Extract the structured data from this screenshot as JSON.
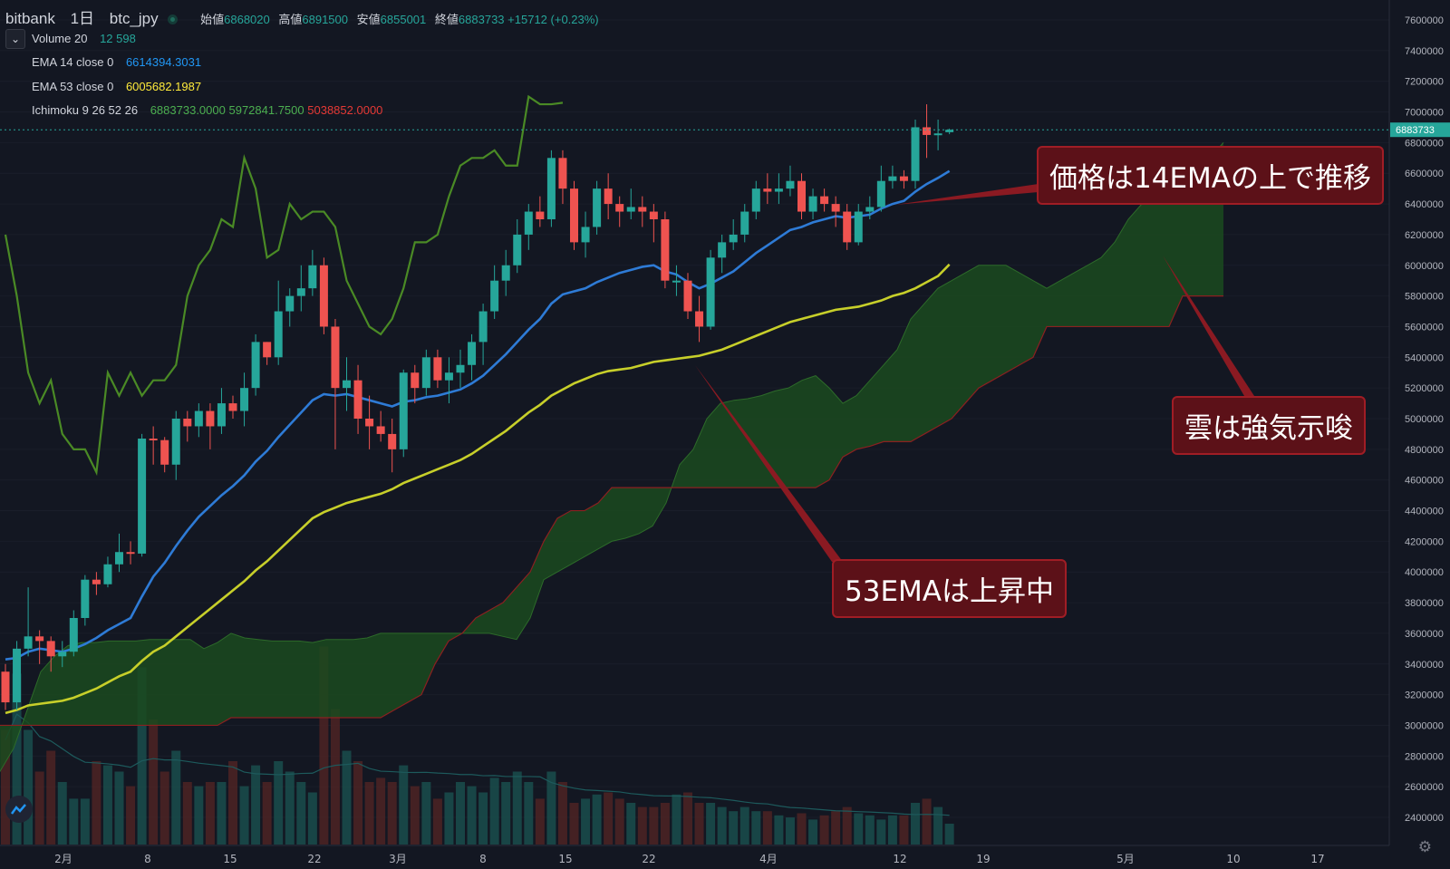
{
  "header": {
    "exchange": "bitbank",
    "interval": "1日",
    "symbol": "btc_jpy",
    "ohlc": {
      "open_label": "始値",
      "open": "6868020",
      "high_label": "高値",
      "high": "6891500",
      "low_label": "安値",
      "low": "6855001",
      "close_label": "終値",
      "close": "6883733",
      "change": "+15712 (+0.23%)"
    }
  },
  "indicators": [
    {
      "name": "Volume 20",
      "values": [
        "12",
        "598"
      ],
      "colors": [
        "#26a69a",
        "#26a69a"
      ]
    },
    {
      "name": "EMA 14 close 0",
      "values": [
        "6614394.3031"
      ],
      "colors": [
        "#2196f3"
      ]
    },
    {
      "name": "EMA 53 close 0",
      "values": [
        "6005682.1987"
      ],
      "colors": [
        "#ffeb3b"
      ]
    },
    {
      "name": "Ichimoku 9 26 52 26",
      "values": [
        "6883733.0000",
        "5972841.7500",
        "5038852.0000"
      ],
      "colors": [
        "#4caf50",
        "#4caf50",
        "#e53935"
      ]
    }
  ],
  "annotations": [
    "価格は14EMAの上で推移",
    "雲は強気示唆",
    "53EMAは上昇中"
  ],
  "colors": {
    "up": "#26a69a",
    "down": "#ef5350",
    "ema14": "#2e7bd6",
    "ema53": "#c7cf2a",
    "lagging": "#4a8a25",
    "cloud": "#1b4a1f",
    "cloud_edge": "#8b2020",
    "callout": "#5c1118"
  },
  "chart_data": {
    "type": "candlestick",
    "yaxis_ticks": [
      "7600000",
      "7400000",
      "7200000",
      "7000000",
      "6800000",
      "6600000",
      "6400000",
      "6200000",
      "6000000",
      "5800000",
      "5600000",
      "5400000",
      "5200000",
      "5000000",
      "4800000",
      "4600000",
      "4400000",
      "4200000",
      "4000000",
      "3800000",
      "3600000",
      "3400000",
      "3200000",
      "3000000",
      "2800000",
      "2600000",
      "2400000"
    ],
    "ylim": [
      2300000,
      7700000
    ],
    "price_label": "6883733",
    "xaxis_labels": [
      "2月",
      "8",
      "15",
      "22",
      "3月",
      "8",
      "15",
      "22",
      "4月",
      "12",
      "19",
      "5月",
      "10",
      "17"
    ],
    "candles": [
      [
        3350000,
        3150000,
        3400000,
        3100000
      ],
      [
        3150000,
        3500000,
        3550000,
        3100000
      ],
      [
        3500000,
        3580000,
        3900000,
        3450000
      ],
      [
        3580000,
        3550000,
        3620000,
        3400000
      ],
      [
        3550000,
        3450000,
        3580000,
        3350000
      ],
      [
        3450000,
        3480000,
        3550000,
        3380000
      ],
      [
        3480000,
        3700000,
        3750000,
        3450000
      ],
      [
        3700000,
        3950000,
        3980000,
        3650000
      ],
      [
        3950000,
        3920000,
        4000000,
        3850000
      ],
      [
        3920000,
        4050000,
        4100000,
        3900000
      ],
      [
        4050000,
        4130000,
        4250000,
        4000000
      ],
      [
        4130000,
        4120000,
        4200000,
        4050000
      ],
      [
        4120000,
        4870000,
        4900000,
        4100000
      ],
      [
        4870000,
        4860000,
        4950000,
        4700000
      ],
      [
        4860000,
        4700000,
        4880000,
        4650000
      ],
      [
        4700000,
        5000000,
        5050000,
        4600000
      ],
      [
        5000000,
        4950000,
        5050000,
        4850000
      ],
      [
        4950000,
        5050000,
        5100000,
        4880000
      ],
      [
        5050000,
        4950000,
        5100000,
        4800000
      ],
      [
        4950000,
        5100000,
        5200000,
        4900000
      ],
      [
        5100000,
        5050000,
        5150000,
        5000000
      ],
      [
        5050000,
        5200000,
        5300000,
        4950000
      ],
      [
        5200000,
        5500000,
        5550000,
        5150000
      ],
      [
        5500000,
        5400000,
        5500000,
        5350000
      ],
      [
        5400000,
        5700000,
        5900000,
        5350000
      ],
      [
        5700000,
        5800000,
        5850000,
        5600000
      ],
      [
        5800000,
        5850000,
        6000000,
        5700000
      ],
      [
        5850000,
        6000000,
        6100000,
        5800000
      ],
      [
        6000000,
        5600000,
        6050000,
        5550000
      ],
      [
        5600000,
        5200000,
        5650000,
        4800000
      ],
      [
        5200000,
        5250000,
        5400000,
        5050000
      ],
      [
        5250000,
        5000000,
        5350000,
        4900000
      ],
      [
        5000000,
        4950000,
        5150000,
        4800000
      ],
      [
        4950000,
        4900000,
        5050000,
        4850000
      ],
      [
        4900000,
        4800000,
        5000000,
        4650000
      ],
      [
        4800000,
        5300000,
        5320000,
        4750000
      ],
      [
        5300000,
        5200000,
        5350000,
        5100000
      ],
      [
        5200000,
        5400000,
        5450000,
        5150000
      ],
      [
        5400000,
        5250000,
        5450000,
        5200000
      ],
      [
        5250000,
        5300000,
        5400000,
        5100000
      ],
      [
        5300000,
        5350000,
        5450000,
        5200000
      ],
      [
        5350000,
        5500000,
        5550000,
        5250000
      ],
      [
        5500000,
        5700000,
        5750000,
        5350000
      ],
      [
        5700000,
        5900000,
        6000000,
        5650000
      ],
      [
        5900000,
        6000000,
        6100000,
        5800000
      ],
      [
        6000000,
        6200000,
        6300000,
        5950000
      ],
      [
        6200000,
        6350000,
        6400000,
        6100000
      ],
      [
        6350000,
        6300000,
        6450000,
        6250000
      ],
      [
        6300000,
        6700000,
        6750000,
        6250000
      ],
      [
        6700000,
        6500000,
        6750000,
        6400000
      ],
      [
        6500000,
        6150000,
        6550000,
        6100000
      ],
      [
        6150000,
        6250000,
        6350000,
        6050000
      ],
      [
        6250000,
        6500000,
        6550000,
        6200000
      ],
      [
        6500000,
        6400000,
        6600000,
        6300000
      ],
      [
        6400000,
        6350000,
        6450000,
        6250000
      ],
      [
        6350000,
        6380000,
        6500000,
        6300000
      ],
      [
        6380000,
        6350000,
        6450000,
        6250000
      ],
      [
        6350000,
        6300000,
        6400000,
        6150000
      ],
      [
        6300000,
        5900000,
        6350000,
        5850000
      ],
      [
        5900000,
        5900000,
        6000000,
        5800000
      ],
      [
        5900000,
        5700000,
        5950000,
        5650000
      ],
      [
        5700000,
        5600000,
        5800000,
        5500000
      ],
      [
        5600000,
        6050000,
        6100000,
        5580000
      ],
      [
        6050000,
        6150000,
        6200000,
        5950000
      ],
      [
        6150000,
        6200000,
        6300000,
        6100000
      ],
      [
        6200000,
        6350000,
        6400000,
        6150000
      ],
      [
        6350000,
        6500000,
        6550000,
        6300000
      ],
      [
        6500000,
        6480000,
        6600000,
        6400000
      ],
      [
        6480000,
        6500000,
        6600000,
        6400000
      ],
      [
        6500000,
        6550000,
        6650000,
        6450000
      ],
      [
        6550000,
        6350000,
        6600000,
        6300000
      ],
      [
        6350000,
        6450000,
        6500000,
        6300000
      ],
      [
        6450000,
        6400000,
        6500000,
        6350000
      ],
      [
        6400000,
        6350000,
        6450000,
        6250000
      ],
      [
        6350000,
        6150000,
        6400000,
        6100000
      ],
      [
        6150000,
        6350000,
        6400000,
        6130000
      ],
      [
        6350000,
        6380000,
        6450000,
        6300000
      ],
      [
        6380000,
        6550000,
        6650000,
        6350000
      ],
      [
        6550000,
        6580000,
        6650000,
        6500000
      ],
      [
        6580000,
        6550000,
        6620000,
        6500000
      ],
      [
        6550000,
        6900000,
        6950000,
        6500000
      ],
      [
        6900000,
        6850000,
        7050000,
        6700000
      ],
      [
        6850000,
        6860000,
        6950000,
        6750000
      ],
      [
        6868020,
        6883733,
        6891500,
        6855001
      ]
    ],
    "volume": [
      0.55,
      0.82,
      0.55,
      0.35,
      0.45,
      0.3,
      0.22,
      0.22,
      0.4,
      0.38,
      0.35,
      0.28,
      0.85,
      0.6,
      0.35,
      0.45,
      0.3,
      0.28,
      0.3,
      0.3,
      0.4,
      0.28,
      0.38,
      0.3,
      0.4,
      0.35,
      0.3,
      0.25,
      0.95,
      0.65,
      0.45,
      0.4,
      0.3,
      0.32,
      0.3,
      0.38,
      0.28,
      0.3,
      0.22,
      0.25,
      0.3,
      0.28,
      0.25,
      0.32,
      0.3,
      0.35,
      0.3,
      0.22,
      0.35,
      0.3,
      0.2,
      0.22,
      0.24,
      0.25,
      0.22,
      0.2,
      0.18,
      0.18,
      0.2,
      0.24,
      0.25,
      0.2,
      0.2,
      0.18,
      0.16,
      0.18,
      0.16,
      0.16,
      0.14,
      0.13,
      0.15,
      0.12,
      0.14,
      0.16,
      0.18,
      0.15,
      0.14,
      0.12,
      0.14,
      0.14,
      0.2,
      0.22,
      0.18,
      0.1
    ],
    "ema14": [
      3430000,
      3440000,
      3480000,
      3500000,
      3490000,
      3480000,
      3500000,
      3530000,
      3570000,
      3620000,
      3660000,
      3700000,
      3840000,
      3970000,
      4060000,
      4170000,
      4270000,
      4360000,
      4430000,
      4500000,
      4560000,
      4630000,
      4720000,
      4790000,
      4880000,
      4960000,
      5040000,
      5120000,
      5160000,
      5150000,
      5160000,
      5140000,
      5120000,
      5100000,
      5080000,
      5110000,
      5120000,
      5140000,
      5150000,
      5170000,
      5190000,
      5230000,
      5280000,
      5350000,
      5420000,
      5500000,
      5580000,
      5650000,
      5750000,
      5810000,
      5830000,
      5850000,
      5890000,
      5920000,
      5950000,
      5970000,
      5990000,
      6000000,
      5960000,
      5940000,
      5890000,
      5850000,
      5880000,
      5920000,
      5960000,
      6020000,
      6080000,
      6130000,
      6180000,
      6230000,
      6250000,
      6280000,
      6300000,
      6320000,
      6310000,
      6320000,
      6330000,
      6370000,
      6400000,
      6420000,
      6480000,
      6530000,
      6570000,
      6614394
    ],
    "ema53": [
      3080000,
      3100000,
      3130000,
      3140000,
      3150000,
      3160000,
      3180000,
      3210000,
      3240000,
      3280000,
      3320000,
      3350000,
      3420000,
      3480000,
      3520000,
      3580000,
      3640000,
      3700000,
      3760000,
      3820000,
      3880000,
      3940000,
      4010000,
      4070000,
      4140000,
      4210000,
      4280000,
      4350000,
      4390000,
      4420000,
      4450000,
      4470000,
      4490000,
      4510000,
      4540000,
      4580000,
      4610000,
      4640000,
      4670000,
      4700000,
      4730000,
      4770000,
      4820000,
      4870000,
      4920000,
      4980000,
      5040000,
      5090000,
      5150000,
      5190000,
      5230000,
      5260000,
      5290000,
      5310000,
      5320000,
      5330000,
      5350000,
      5370000,
      5380000,
      5390000,
      5400000,
      5410000,
      5430000,
      5450000,
      5480000,
      5510000,
      5540000,
      5570000,
      5600000,
      5630000,
      5650000,
      5670000,
      5690000,
      5710000,
      5720000,
      5730000,
      5750000,
      5770000,
      5800000,
      5820000,
      5850000,
      5890000,
      5930000,
      6005682
    ],
    "lagging": [
      6200000,
      5800000,
      5300000,
      5100000,
      5250000,
      4900000,
      4800000,
      4800000,
      4650000,
      5300000,
      5150000,
      5300000,
      5150000,
      5250000,
      5250000,
      5350000,
      5800000,
      6000000,
      6100000,
      6300000,
      6250000,
      6700000,
      6500000,
      6050000,
      6100000,
      6400000,
      6300000,
      6350000,
      6350000,
      6250000,
      5900000,
      5750000,
      5600000,
      5550000,
      5650000,
      5850000,
      6150000,
      6150000,
      6200000,
      6450000,
      6650000,
      6700000,
      6700000,
      6750000,
      6650000,
      6650000,
      7100000,
      7050000,
      7050000,
      7060000
    ],
    "cloud_a": [
      2550000,
      2700000,
      2850000,
      3100000,
      3350000,
      3450000,
      3520000,
      3540000,
      3540000,
      3550000,
      3550000,
      3550000,
      3560000,
      3560000,
      3560000,
      3560000,
      3500000,
      3540000,
      3600000,
      3570000,
      3560000,
      3550000,
      3550000,
      3550000,
      3540000,
      3560000,
      3560000,
      3560000,
      3570000,
      3600000,
      3600000,
      3600000,
      3600000,
      3600000,
      3600000,
      3600000,
      3600000,
      3600000,
      3580000,
      3560000,
      3700000,
      3950000,
      4000000,
      4050000,
      4100000,
      4150000,
      4200000,
      4220000,
      4250000,
      4300000,
      4450000,
      4700000,
      4800000,
      5000000,
      5100000,
      5120000,
      5130000,
      5150000,
      5180000,
      5200000,
      5250000,
      5280000,
      5200000,
      5100000,
      5150000,
      5250000,
      5350000,
      5450000,
      5650000,
      5750000,
      5850000,
      5900000,
      5950000,
      6000000,
      6000000,
      6000000,
      5950000,
      5900000,
      5850000,
      5900000,
      5950000,
      6000000,
      6050000,
      6150000,
      6300000,
      6400000,
      6450000,
      6450000,
      6500000,
      6500000,
      6700000,
      6800000
    ],
    "cloud_b": [
      3000000,
      3000000,
      3000000,
      3000000,
      3000000,
      3000000,
      3000000,
      3000000,
      3000000,
      3000000,
      3000000,
      3000000,
      3000000,
      3000000,
      3000000,
      3000000,
      3000000,
      3000000,
      3050000,
      3050000,
      3050000,
      3050000,
      3050000,
      3050000,
      3050000,
      3050000,
      3050000,
      3050000,
      3050000,
      3050000,
      3100000,
      3150000,
      3200000,
      3400000,
      3550000,
      3600000,
      3700000,
      3750000,
      3800000,
      3900000,
      4000000,
      4200000,
      4350000,
      4400000,
      4400000,
      4450000,
      4550000,
      4550000,
      4550000,
      4550000,
      4550000,
      4550000,
      4550000,
      4550000,
      4550000,
      4550000,
      4550000,
      4550000,
      4550000,
      4550000,
      4550000,
      4550000,
      4600000,
      4750000,
      4800000,
      4820000,
      4850000,
      4850000,
      4850000,
      4900000,
      4950000,
      5000000,
      5100000,
      5200000,
      5250000,
      5300000,
      5350000,
      5400000,
      5600000,
      5600000,
      5600000,
      5600000,
      5600000,
      5600000,
      5600000,
      5600000,
      5600000,
      5600000,
      5800000,
      5800000,
      5800000,
      5800000
    ]
  }
}
